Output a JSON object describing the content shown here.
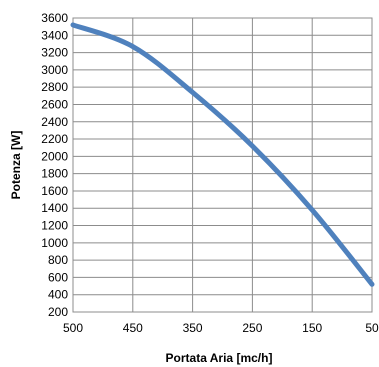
{
  "chart_data": {
    "type": "line",
    "title": "",
    "xlabel": "Portata Aria [mc/h]",
    "ylabel": "Potenza [W]",
    "categories": [
      "500",
      "450",
      "350",
      "250",
      "150",
      "50"
    ],
    "x_ticks": [
      "500",
      "450",
      "350",
      "250",
      "150",
      "50"
    ],
    "ylim": [
      200,
      3600
    ],
    "y_ticks": [
      200,
      400,
      600,
      800,
      1000,
      1200,
      1400,
      1600,
      1800,
      2000,
      2200,
      2400,
      2600,
      2800,
      3000,
      3200,
      3400,
      3600
    ],
    "grid": true,
    "legend": "none",
    "series": [
      {
        "color": "#4f81bd",
        "values": [
          3520,
          3270,
          2740,
          2120,
          1380,
          520
        ]
      }
    ]
  }
}
